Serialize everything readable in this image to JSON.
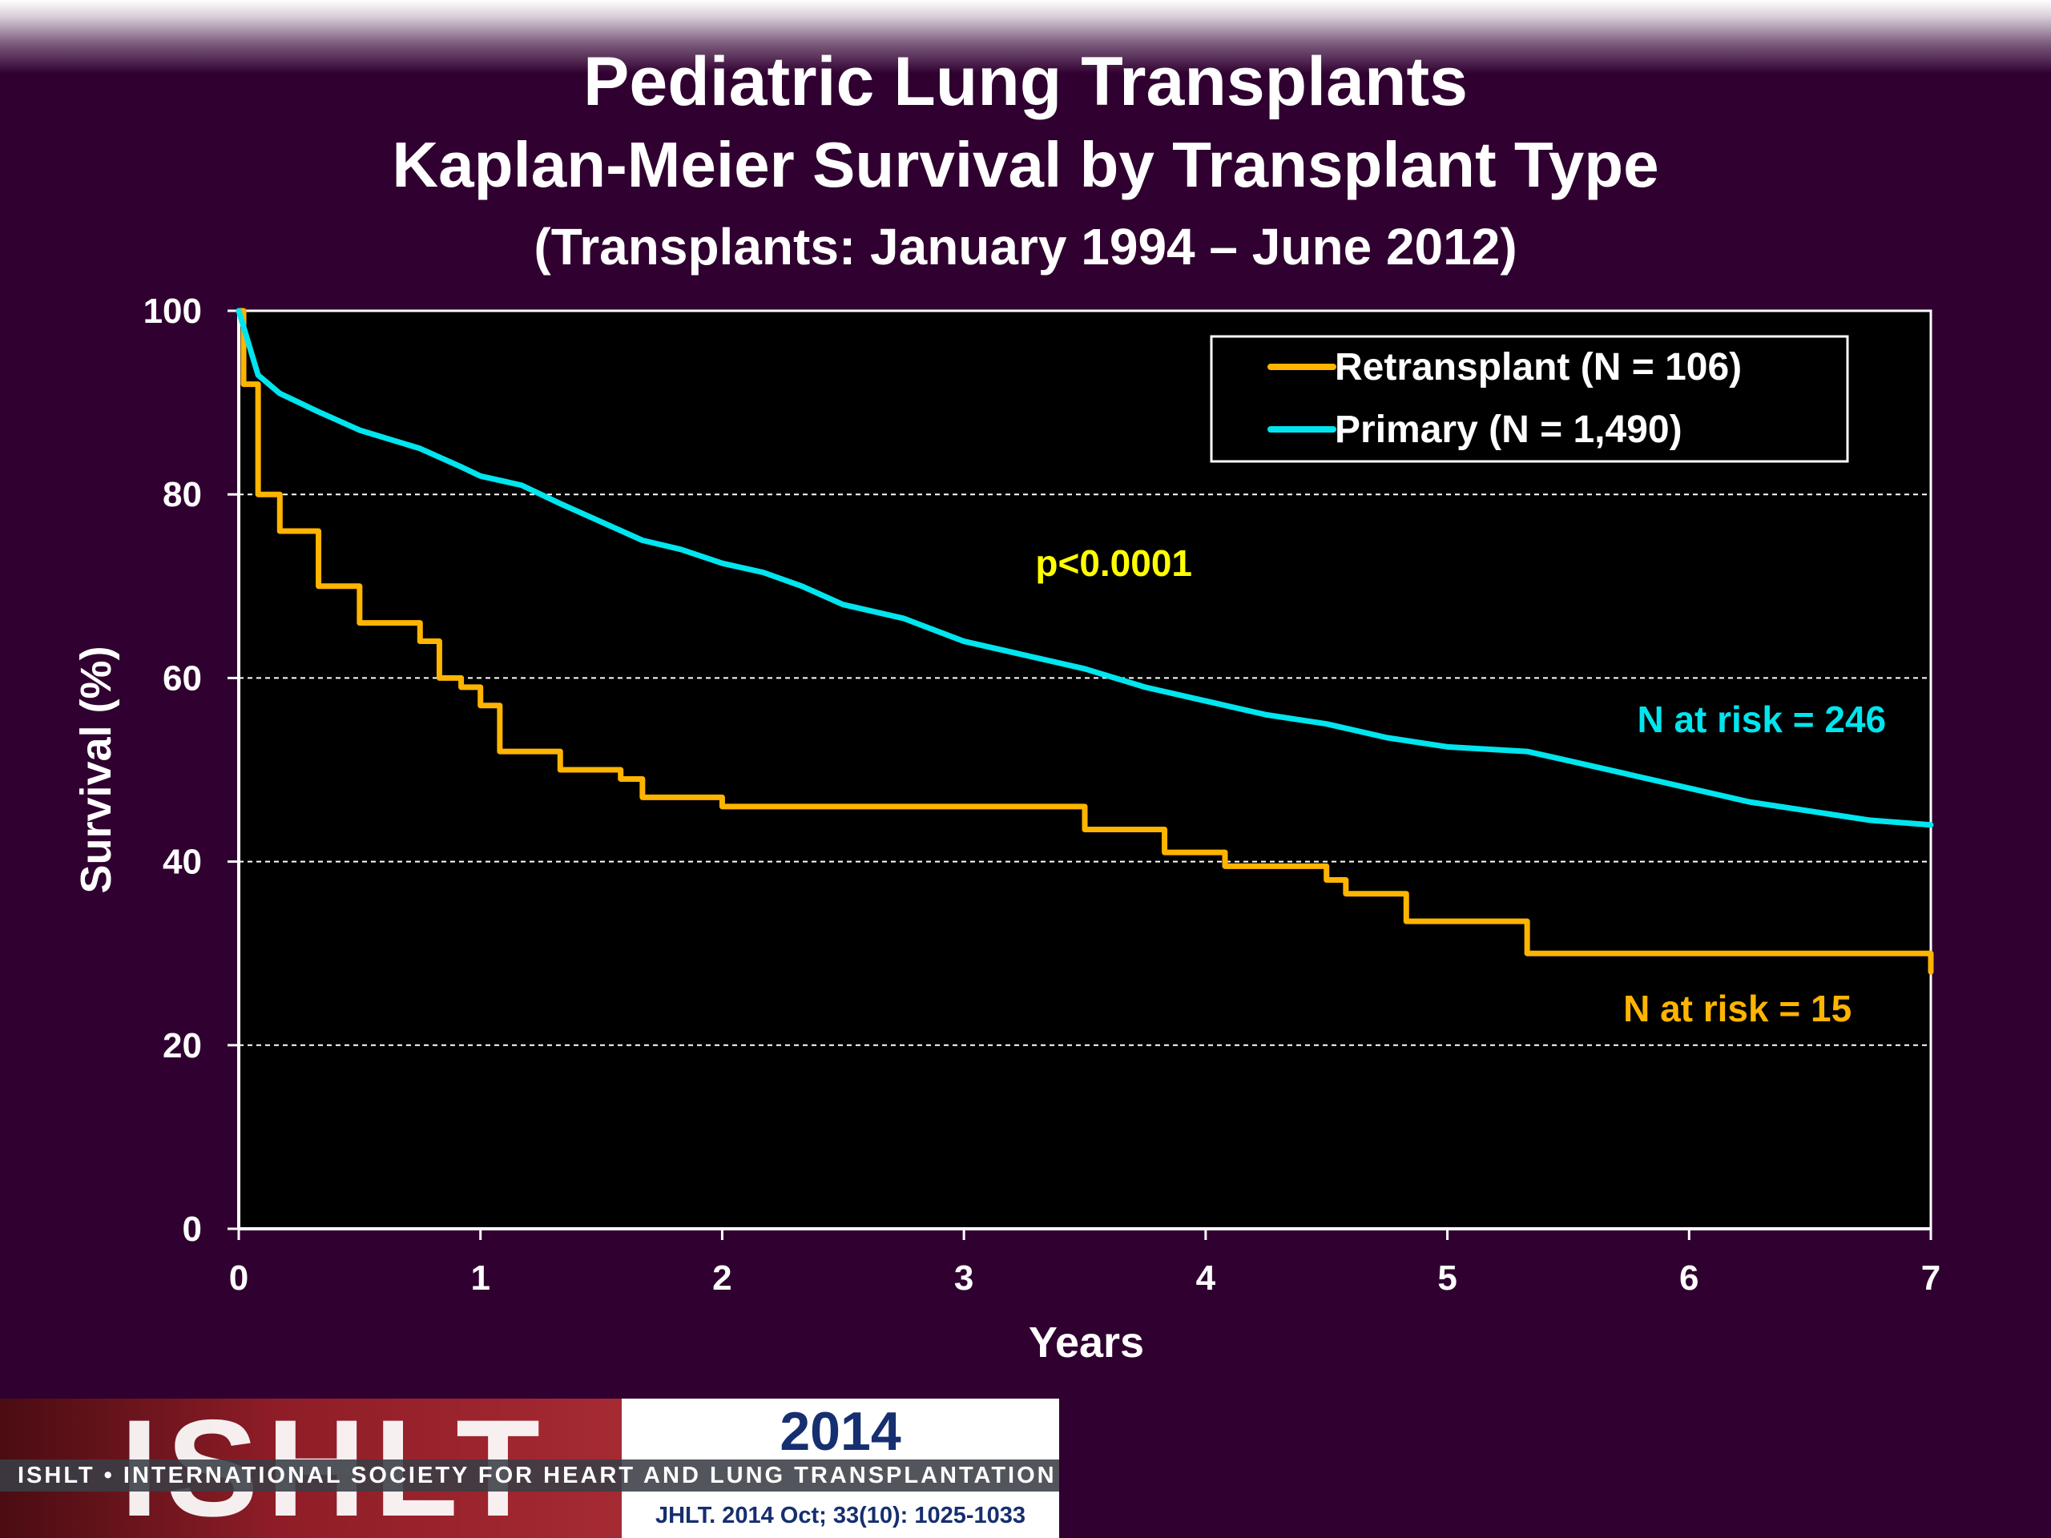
{
  "slide": {
    "title": "Pediatric Lung Transplants",
    "subtitle": "Kaplan-Meier Survival by Transplant Type",
    "subtitle2": "(Transplants: January 1994 – June 2012)"
  },
  "chart_data": {
    "type": "line",
    "xlabel": "Years",
    "ylabel": "Survival (%)",
    "xlim": [
      0,
      7
    ],
    "ylim": [
      0,
      100
    ],
    "xticks": [
      0,
      1,
      2,
      3,
      4,
      5,
      6,
      7
    ],
    "yticks": [
      0,
      20,
      40,
      60,
      80,
      100
    ],
    "grid": "horizontal dashed",
    "legend_position": "top-right",
    "series": [
      {
        "name": "Retransplant (N = 106)",
        "color": "#ffb400",
        "step": true,
        "x": [
          0,
          0.02,
          0.08,
          0.17,
          0.33,
          0.5,
          0.67,
          0.75,
          0.83,
          0.92,
          1.0,
          1.08,
          1.25,
          1.33,
          1.5,
          1.58,
          1.67,
          1.92,
          2.0,
          2.25,
          2.5,
          3.0,
          3.33,
          3.5,
          3.67,
          3.83,
          4.0,
          4.08,
          4.33,
          4.5,
          4.58,
          4.75,
          4.83,
          5.0,
          5.17,
          5.33,
          6.0,
          6.5,
          6.92,
          7.0
        ],
        "y": [
          100,
          92,
          80,
          76,
          70,
          66,
          66,
          64,
          60,
          59,
          57,
          52,
          52,
          50,
          50,
          49,
          47,
          47,
          46,
          46,
          46,
          46,
          46,
          43.5,
          43.5,
          41,
          41,
          39.5,
          39.5,
          38,
          36.5,
          36.5,
          33.5,
          33.5,
          33.5,
          30,
          30,
          30,
          30,
          28
        ]
      },
      {
        "name": "Primary (N = 1,490)",
        "color": "#00e5ee",
        "step": false,
        "x": [
          0,
          0.08,
          0.17,
          0.33,
          0.5,
          0.75,
          0.92,
          1.0,
          1.17,
          1.33,
          1.5,
          1.67,
          1.83,
          2.0,
          2.17,
          2.33,
          2.5,
          2.75,
          3.0,
          3.25,
          3.5,
          3.75,
          4.0,
          4.25,
          4.5,
          4.75,
          5.0,
          5.33,
          5.5,
          5.75,
          6.0,
          6.25,
          6.5,
          6.75,
          7.0
        ],
        "y": [
          100,
          93,
          91,
          89,
          87,
          85,
          83,
          82,
          81,
          79,
          77,
          75,
          74,
          72.5,
          71.5,
          70,
          68,
          66.5,
          64,
          62.5,
          61,
          59,
          57.5,
          56,
          55,
          53.5,
          52.5,
          52,
          51,
          49.5,
          48,
          46.5,
          45.5,
          44.5,
          44
        ]
      }
    ],
    "annotations": [
      {
        "text": "p<0.0001",
        "x": 3.62,
        "y": 72.5,
        "color": "#ffff00"
      },
      {
        "text": "N at risk = 246",
        "x": 6.3,
        "y": 55.5,
        "color": "#00e5ee"
      },
      {
        "text": "N at risk = 15",
        "x": 6.2,
        "y": 24,
        "color": "#ffb400"
      }
    ]
  },
  "footer": {
    "logo_text": "ISHLT",
    "year": "2014",
    "society": "ISHLT • INTERNATIONAL SOCIETY FOR HEART AND LUNG TRANSPLANTATION",
    "citation": "JHLT. 2014 Oct; 33(10): 1025-1033"
  }
}
